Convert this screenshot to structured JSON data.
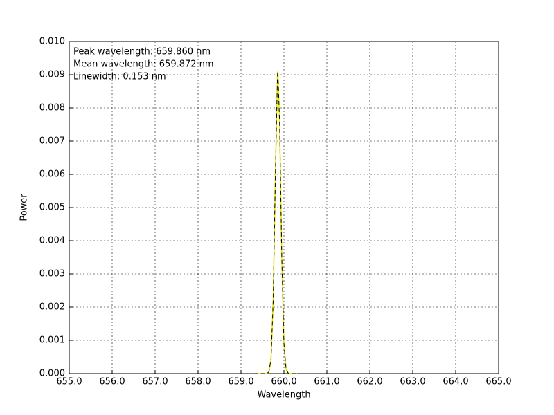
{
  "chart_data": {
    "type": "line",
    "xlabel": "Wavelength",
    "ylabel": "Power",
    "annotations": [
      "Peak wavelength: 659.860 nm",
      "Mean wavelength: 659.872 nm",
      "Linewidth: 0.153 nm"
    ],
    "x": [
      659.3,
      659.4,
      659.5,
      659.6,
      659.65,
      659.7,
      659.75,
      659.8,
      659.85,
      659.86,
      659.9,
      659.95,
      660.0,
      660.05,
      660.1,
      660.2,
      660.3
    ],
    "series": [
      {
        "color": "#e8e800",
        "linestyle": "solid",
        "values": [
          0,
          0,
          0,
          0,
          5e-05,
          0.00044,
          0.0022,
          0.0059,
          0.009,
          0.0091,
          0.0075,
          0.0035,
          0.0009,
          0.00013,
          1e-05,
          0,
          0
        ]
      },
      {
        "color": "#000000",
        "linestyle": "dashed",
        "values": [
          0,
          0,
          0,
          0,
          5e-05,
          0.00044,
          0.0022,
          0.0059,
          0.009,
          0.0091,
          0.0075,
          0.0035,
          0.0009,
          0.00013,
          1e-05,
          0,
          0
        ]
      }
    ],
    "xlim": [
      655,
      665
    ],
    "xticks": [
      {
        "value": 655,
        "label": "655.0"
      },
      {
        "value": 656,
        "label": "656.0"
      },
      {
        "value": 657,
        "label": "657.0"
      },
      {
        "value": 658,
        "label": "658.0"
      },
      {
        "value": 659,
        "label": "659.0"
      },
      {
        "value": 660,
        "label": "660.0"
      },
      {
        "value": 661,
        "label": "661.0"
      },
      {
        "value": 662,
        "label": "662.0"
      },
      {
        "value": 663,
        "label": "663.0"
      },
      {
        "value": 664,
        "label": "664.0"
      },
      {
        "value": 665,
        "label": "665.0"
      }
    ],
    "ylim": [
      0,
      0.01
    ],
    "yticks": [
      {
        "value": 0,
        "label": "0.000"
      },
      {
        "value": 0.001,
        "label": "0.001"
      },
      {
        "value": 0.002,
        "label": "0.002"
      },
      {
        "value": 0.003,
        "label": "0.003"
      },
      {
        "value": 0.004,
        "label": "0.004"
      },
      {
        "value": 0.005,
        "label": "0.005"
      },
      {
        "value": 0.006,
        "label": "0.006"
      },
      {
        "value": 0.007,
        "label": "0.007"
      },
      {
        "value": 0.008,
        "label": "0.008"
      },
      {
        "value": 0.009,
        "label": "0.009"
      },
      {
        "value": 0.01,
        "label": "0.010"
      }
    ],
    "grid": true
  }
}
